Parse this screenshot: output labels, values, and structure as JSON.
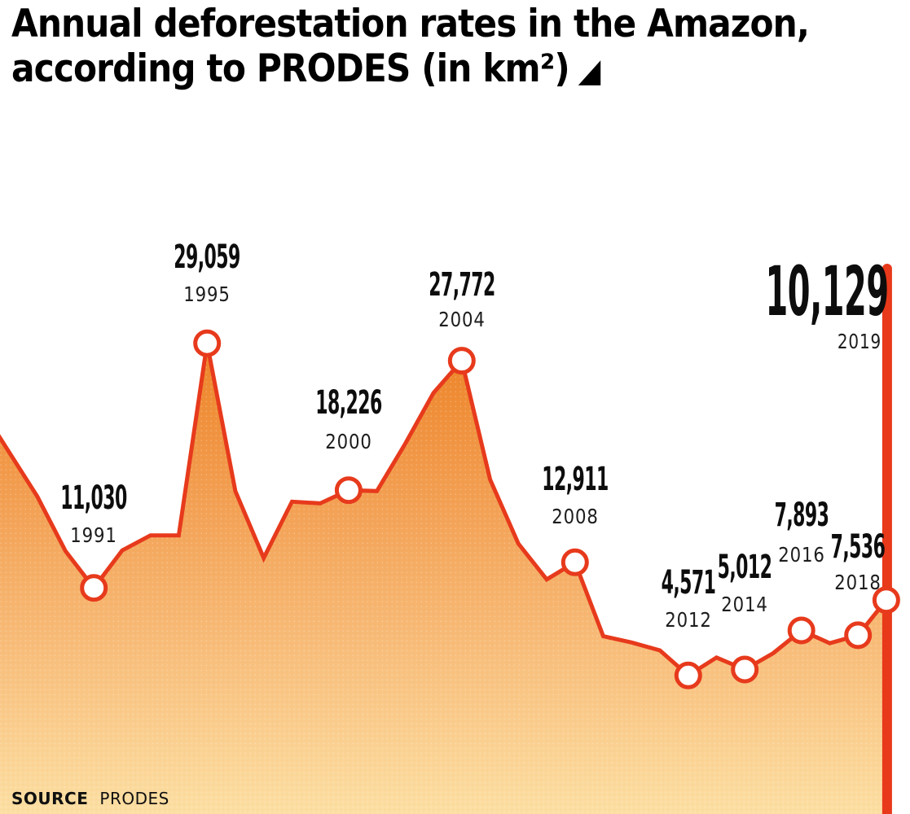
{
  "header": {
    "title_line1": "Annual deforestation rates in the Amazon,",
    "title_line2": "according to PRODES (in km²)",
    "triangle_icon": "◢"
  },
  "footer": {
    "source_label": "SOURCE",
    "source_value": "PRODES"
  },
  "colors": {
    "line": "#e73a1c",
    "bar": "#e8391b",
    "marker_fill": "#ffffff",
    "area_top": "#ec7f21",
    "area_upper_mid": "#f29c4e",
    "area_lower_mid": "#f8bf7d",
    "area_bottom": "#fcdfa3",
    "value_text": "#0d0d0d",
    "year_text": "#1d1d1d"
  },
  "chart_data": {
    "type": "area",
    "title": "Annual deforestation rates in the Amazon, according to PRODES (in km²)",
    "unit": "km²",
    "x": [
      1988,
      1989,
      1990,
      1991,
      1992,
      1993,
      1994,
      1995,
      1996,
      1997,
      1998,
      1999,
      2000,
      2001,
      2002,
      2003,
      2004,
      2005,
      2006,
      2007,
      2008,
      2009,
      2010,
      2011,
      2012,
      2013,
      2014,
      2015,
      2016,
      2017,
      2018,
      2019
    ],
    "values": [
      21050,
      17770,
      13730,
      11030,
      13786,
      14896,
      14896,
      29059,
      18161,
      13227,
      17383,
      17259,
      18226,
      18165,
      21651,
      25396,
      27772,
      19014,
      14286,
      11651,
      12911,
      7464,
      7000,
      6418,
      4571,
      5891,
      5012,
      6207,
      7893,
      6947,
      7536,
      10129
    ],
    "labeled_points": [
      {
        "year": "1991",
        "value": 11030,
        "value_label": "11,030"
      },
      {
        "year": "1995",
        "value": 29059,
        "value_label": "29,059"
      },
      {
        "year": "2000",
        "value": 18226,
        "value_label": "18,226"
      },
      {
        "year": "2004",
        "value": 27772,
        "value_label": "27,772"
      },
      {
        "year": "2008",
        "value": 12911,
        "value_label": "12,911"
      },
      {
        "year": "2012",
        "value": 4571,
        "value_label": "4,571"
      },
      {
        "year": "2014",
        "value": 5012,
        "value_label": "5,012"
      },
      {
        "year": "2016",
        "value": 7893,
        "value_label": "7,893"
      },
      {
        "year": "2018",
        "value": 7536,
        "value_label": "7,536"
      },
      {
        "year": "2019",
        "value": 10129,
        "value_label": "10,129",
        "highlight": true
      }
    ],
    "highlight_year": "2019",
    "source": "PRODES",
    "legend": "none",
    "grid": "off"
  }
}
